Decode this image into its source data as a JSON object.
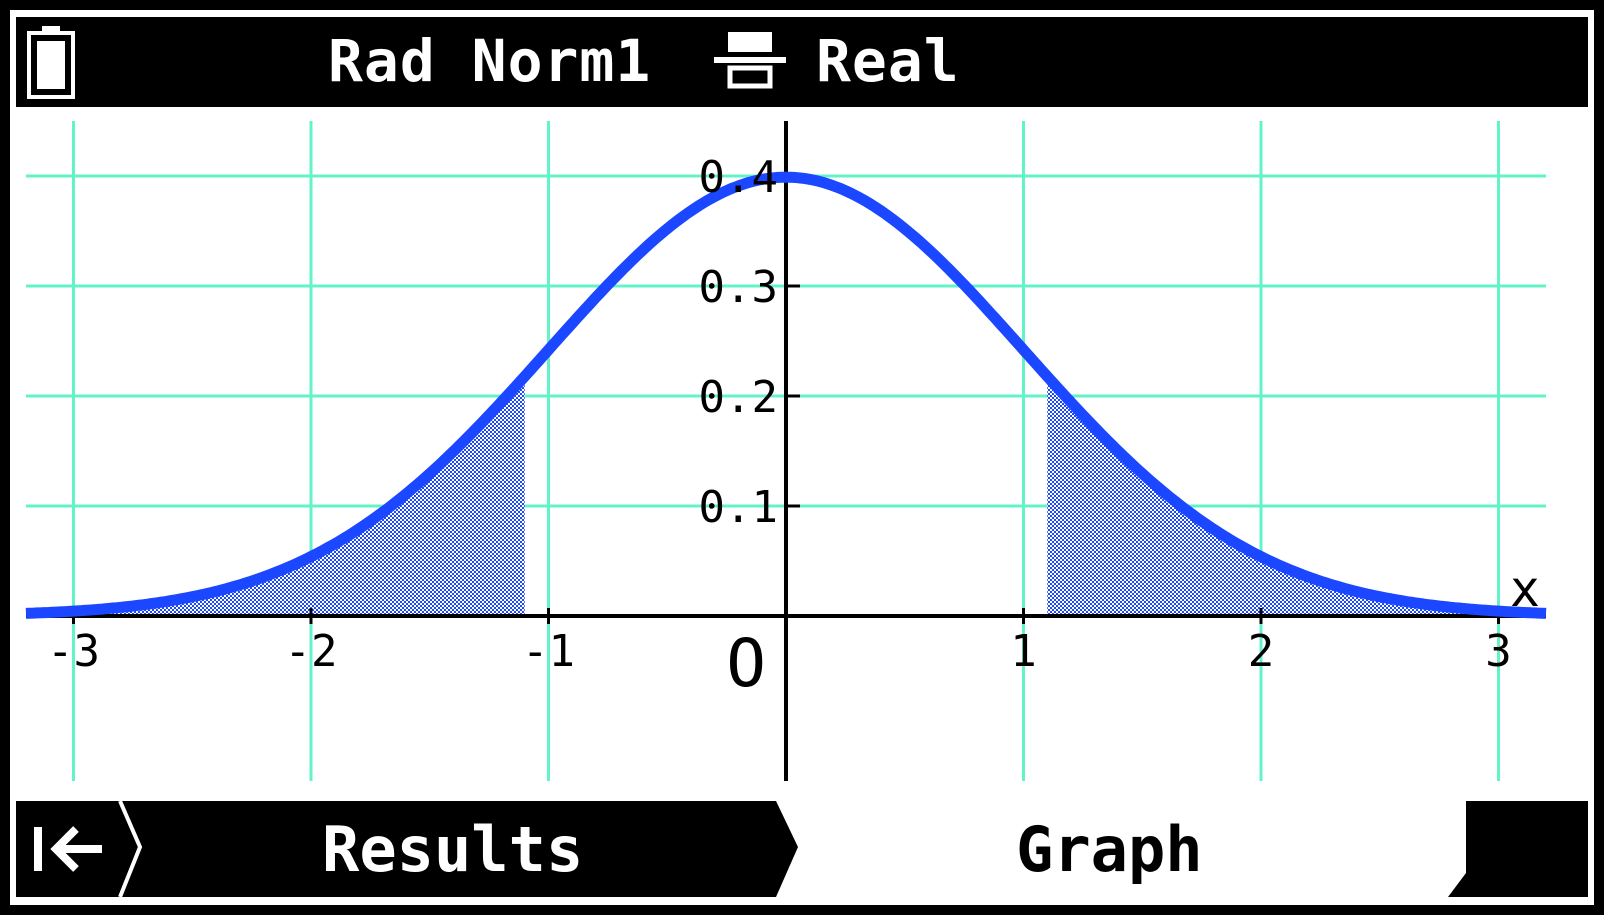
{
  "status_bar": {
    "mode": "Rad Norm1",
    "number_format": "Real",
    "icons": [
      "battery-icon",
      "display-format-icon"
    ]
  },
  "softkeys": {
    "back_icon": "back-to-start-icon",
    "results_label": "Results",
    "graph_label": "Graph"
  },
  "chart_data": {
    "type": "area",
    "function": "normal-pdf",
    "mean": 0,
    "sd": 1,
    "xlim": [
      -3.2,
      3.2
    ],
    "ylim": [
      -0.15,
      0.45
    ],
    "x_ticks": [
      -3,
      -2,
      -1,
      1,
      2,
      3
    ],
    "x_tick_labels": [
      "-3",
      "-2",
      "-1",
      "1",
      "2",
      "3"
    ],
    "y_ticks": [
      0.1,
      0.2,
      0.3,
      0.4
    ],
    "y_tick_labels": [
      "0.1",
      "0.2",
      "0.3",
      "0.4"
    ],
    "origin_label": "O",
    "x_axis_label": "x",
    "grid": true,
    "shaded_regions": [
      [
        -3.2,
        -1.1
      ],
      [
        1.1,
        3.2
      ]
    ],
    "colors": {
      "curve": "#1a47ff",
      "shade": "#1a47ff",
      "grid": "#63f3c8",
      "axis": "#000000"
    }
  }
}
